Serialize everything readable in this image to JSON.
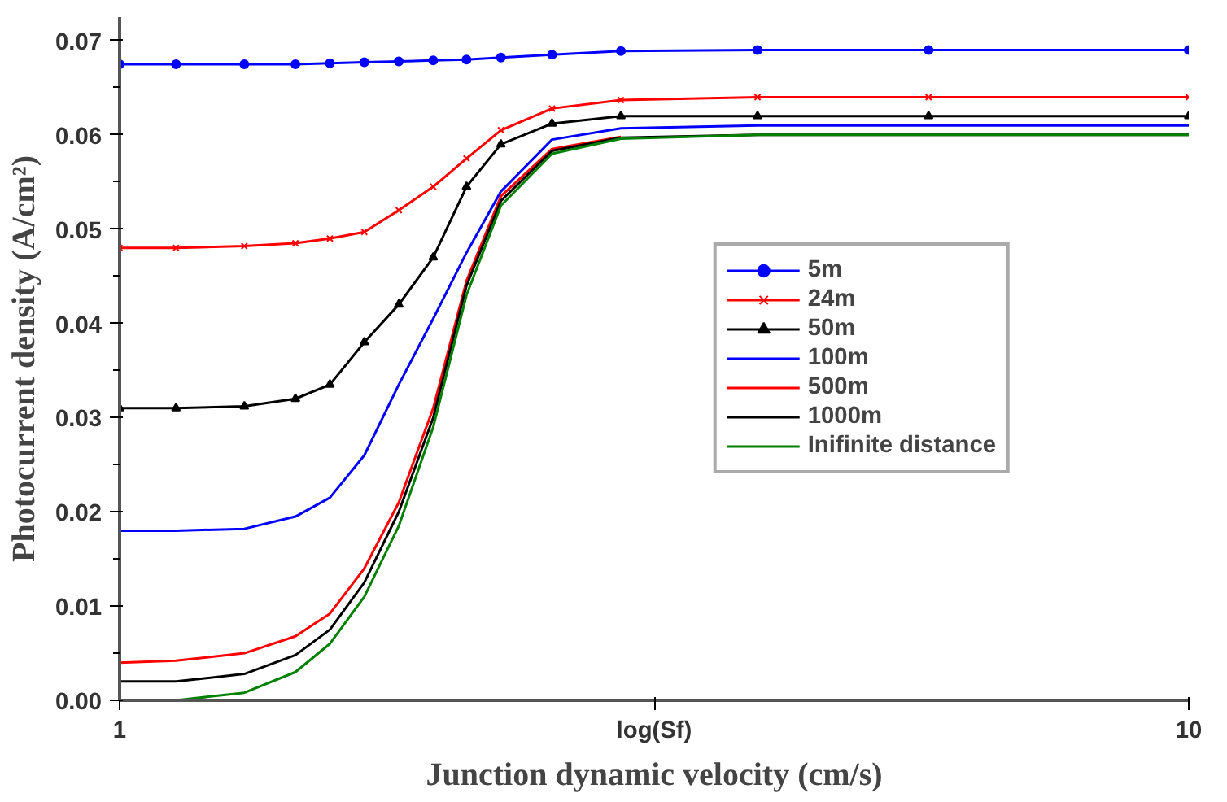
{
  "chart_data": {
    "type": "line",
    "xlabel": "Junction dynamic velocity (cm/s)",
    "ylabel": "Photocurrent density (A/cm²)",
    "x": [
      1.0,
      1.475,
      2.05,
      2.48,
      2.77,
      3.06,
      3.35,
      3.64,
      3.92,
      4.21,
      4.64,
      5.22,
      6.37,
      7.81,
      10.0
    ],
    "series": [
      {
        "name": "5m",
        "color": "#0000ff",
        "marker": "circle",
        "values": [
          0.0675,
          0.0675,
          0.0675,
          0.0675,
          0.0676,
          0.0677,
          0.0678,
          0.0679,
          0.068,
          0.0682,
          0.0685,
          0.0689,
          0.069,
          0.069,
          0.069
        ]
      },
      {
        "name": "24m",
        "color": "#ff0000",
        "marker": "cross",
        "values": [
          0.048,
          0.048,
          0.0482,
          0.0485,
          0.049,
          0.0497,
          0.052,
          0.0545,
          0.0575,
          0.0605,
          0.0628,
          0.0637,
          0.064,
          0.064,
          0.064
        ]
      },
      {
        "name": "50m",
        "color": "#000000",
        "marker": "triangle",
        "values": [
          0.031,
          0.031,
          0.0312,
          0.032,
          0.0335,
          0.038,
          0.042,
          0.047,
          0.0545,
          0.059,
          0.0612,
          0.062,
          0.062,
          0.062,
          0.062
        ]
      },
      {
        "name": "100m",
        "color": "#0000ff",
        "marker": "none",
        "values": [
          0.018,
          0.018,
          0.0182,
          0.0195,
          0.0215,
          0.026,
          0.0335,
          0.0405,
          0.0475,
          0.054,
          0.0595,
          0.0607,
          0.061,
          0.061,
          0.061
        ]
      },
      {
        "name": "500m",
        "color": "#ff0000",
        "marker": "none",
        "values": [
          0.004,
          0.0042,
          0.005,
          0.0068,
          0.0092,
          0.014,
          0.021,
          0.031,
          0.0445,
          0.0535,
          0.0585,
          0.0598,
          null,
          null,
          null
        ]
      },
      {
        "name": "1000m",
        "color": "#000000",
        "marker": "none",
        "values": [
          0.002,
          0.002,
          0.0028,
          0.0048,
          0.0075,
          0.0125,
          0.02,
          0.03,
          0.044,
          0.053,
          0.0583,
          0.0597,
          0.06,
          0.06,
          0.06
        ]
      },
      {
        "name": "Inifinite distance",
        "color": "#008000",
        "marker": "none",
        "values": [
          0.0,
          0.0,
          0.0008,
          0.003,
          0.006,
          0.011,
          0.0185,
          0.029,
          0.043,
          0.0525,
          0.058,
          0.0596,
          0.06,
          0.06,
          0.06
        ]
      }
    ],
    "xlim": [
      1,
      10
    ],
    "xticks": [
      1,
      {
        "value": 5.5,
        "label": "log(Sf)"
      },
      10
    ],
    "ylim": [
      0,
      0.0725
    ],
    "yticks": [
      {
        "value": 0,
        "label": "0.00"
      },
      {
        "value": 0.01,
        "label": "0.01"
      },
      {
        "value": 0.02,
        "label": "0.02"
      },
      {
        "value": 0.03,
        "label": "0.03"
      },
      {
        "value": 0.04,
        "label": "0.04"
      },
      {
        "value": 0.05,
        "label": "0.05"
      },
      {
        "value": 0.06,
        "label": "0.06"
      },
      {
        "value": 0.07,
        "label": "0.07"
      }
    ],
    "grid": false,
    "legend": "center right",
    "line_style": "solid"
  }
}
